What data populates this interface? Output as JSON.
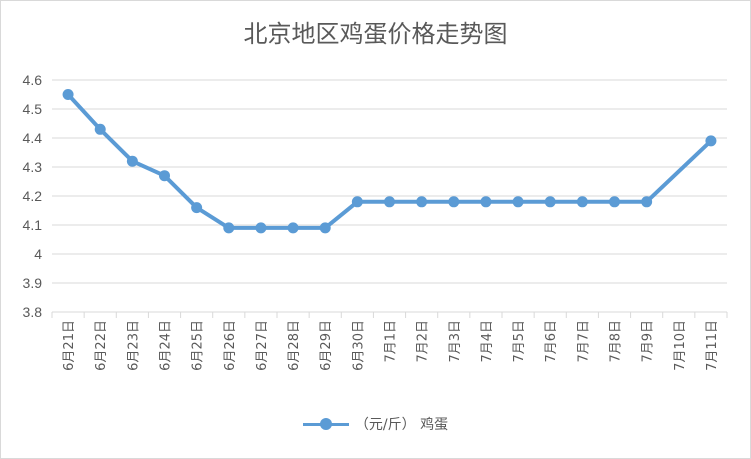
{
  "chart_data": {
    "type": "line",
    "title": "北京地区鸡蛋价格走势图",
    "categories": [
      "6月21日",
      "6月22日",
      "6月23日",
      "6月24日",
      "6月25日",
      "6月26日",
      "6月27日",
      "6月28日",
      "6月29日",
      "6月30日",
      "7月1日",
      "7月2日",
      "7月3日",
      "7月4日",
      "7月5日",
      "7月6日",
      "7月7日",
      "7月8日",
      "7月9日",
      "7月10日",
      "7月11日"
    ],
    "series": [
      {
        "name": "（元/斤） 鸡蛋",
        "color": "#5b9bd5",
        "values": [
          4.55,
          4.43,
          4.32,
          4.27,
          4.16,
          4.09,
          4.09,
          4.09,
          4.09,
          4.18,
          4.18,
          4.18,
          4.18,
          4.18,
          4.18,
          4.18,
          4.18,
          4.18,
          4.18,
          null,
          4.39
        ]
      }
    ],
    "yticks": [
      "3.8",
      "3.9",
      "4",
      "4.1",
      "4.2",
      "4.3",
      "4.4",
      "4.5",
      "4.6"
    ],
    "ylim": [
      3.8,
      4.6
    ],
    "grid": true,
    "legend_position": "bottom"
  }
}
